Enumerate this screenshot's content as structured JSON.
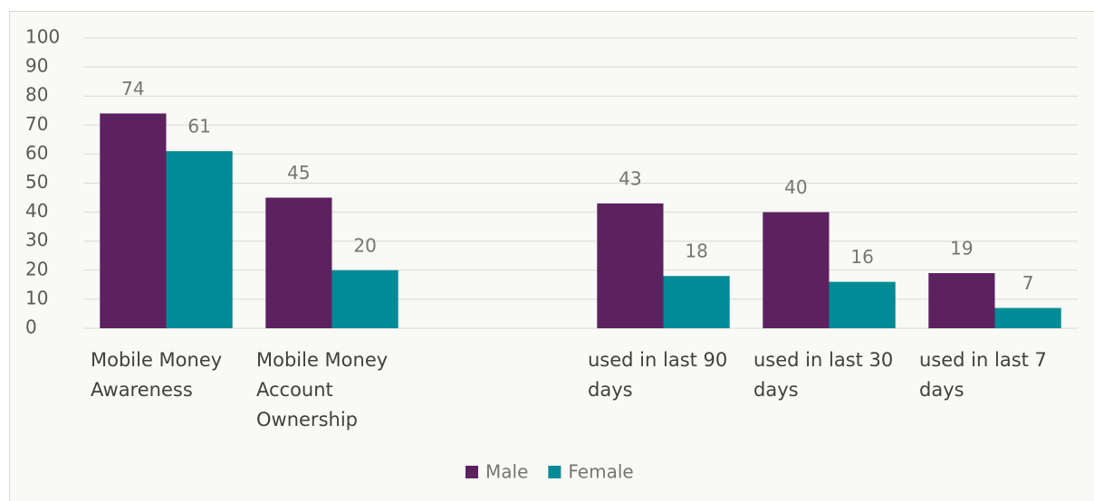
{
  "chart_data": {
    "type": "bar",
    "categories": [
      "Mobile Money Awareness",
      "Mobile Money Account Ownership",
      null,
      "used in last 90 days",
      "used in last 30 days",
      "used in last 7 days"
    ],
    "series": [
      {
        "name": "Male",
        "color": "#5c2260",
        "values": [
          74,
          45,
          null,
          43,
          40,
          19
        ]
      },
      {
        "name": "Female",
        "color": "#008b96",
        "values": [
          61,
          20,
          null,
          18,
          16,
          7
        ]
      }
    ],
    "ylim": [
      0,
      100
    ],
    "yticks": [
      0,
      10,
      20,
      30,
      40,
      50,
      60,
      70,
      80,
      90,
      100
    ],
    "grid": true,
    "legend": "bottom"
  }
}
